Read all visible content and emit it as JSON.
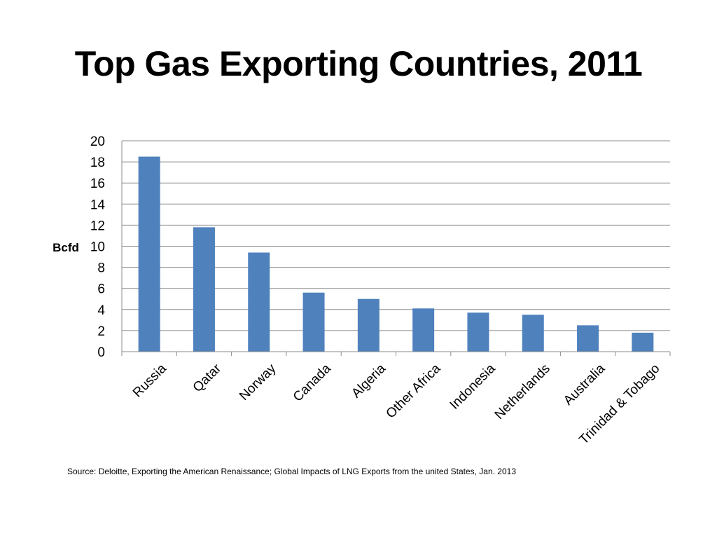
{
  "slide": {
    "title": "Top Gas Exporting Countries, 2011",
    "source": "Source: Deloitte, Exporting the American Renaissance; Global Impacts of LNG Exports from the united States, Jan. 2013"
  },
  "chart_data": {
    "type": "bar",
    "categories": [
      "Russia",
      "Qatar",
      "Norway",
      "Canada",
      "Algeria",
      "Other Africa",
      "Indonesia",
      "Netherlands",
      "Australia",
      "Trinidad & Tobago"
    ],
    "values": [
      18.5,
      11.8,
      9.4,
      5.6,
      5.0,
      4.1,
      3.7,
      3.5,
      2.5,
      1.8
    ],
    "ylabel": "Bcfd",
    "ylim": [
      0,
      20
    ],
    "yticks": [
      0,
      2,
      4,
      6,
      8,
      10,
      12,
      14,
      16,
      18,
      20
    ],
    "grid": true,
    "bar_color": "#4f81bd",
    "legend": false
  }
}
